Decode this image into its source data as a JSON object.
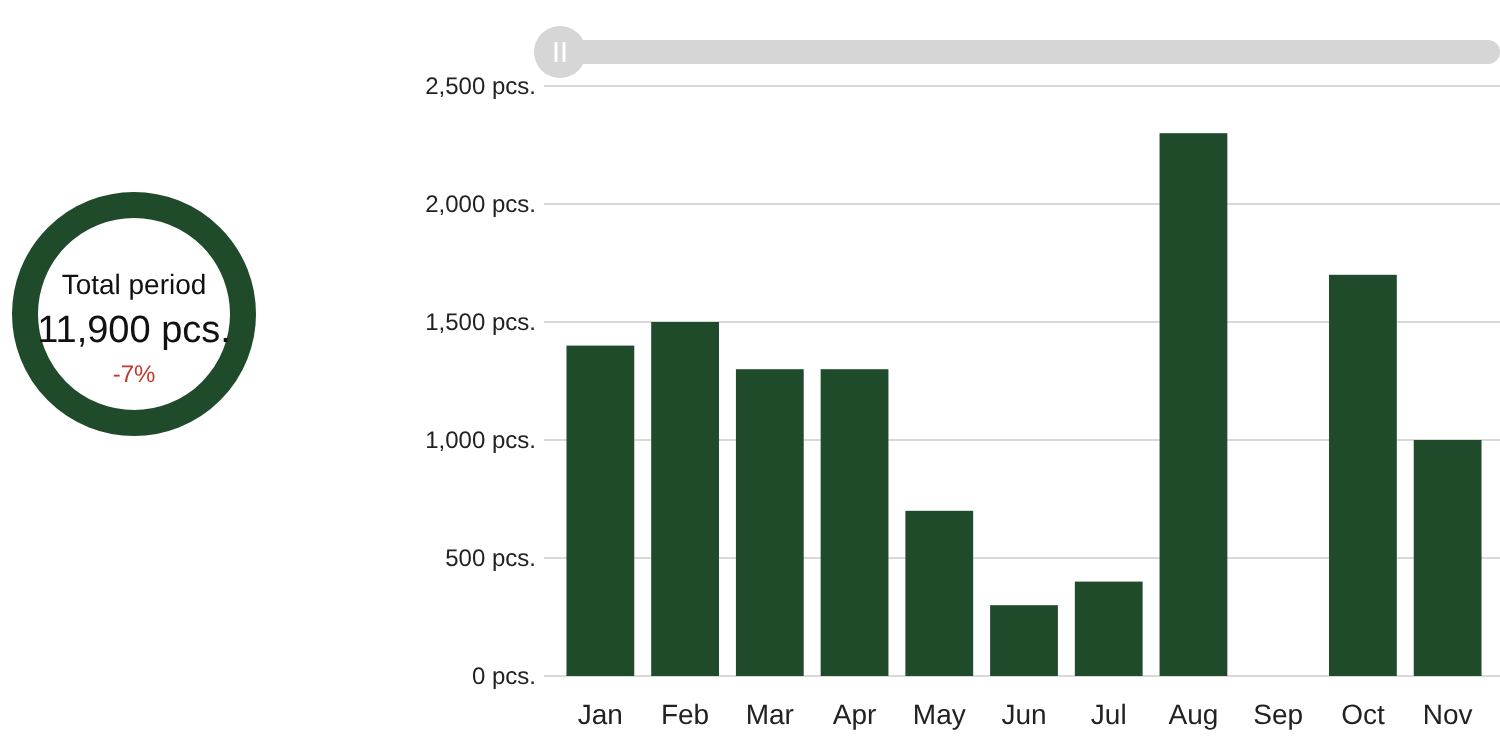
{
  "chart_data": [
    {
      "type": "other",
      "title": "Total period",
      "annotations": [
        "11,900 pcs.",
        "-7%"
      ]
    },
    {
      "type": "bar",
      "categories": [
        "Jan",
        "Feb",
        "Mar",
        "Apr",
        "May",
        "Jun",
        "Jul",
        "Aug",
        "Sep",
        "Oct",
        "Nov"
      ],
      "values": [
        1400,
        1500,
        1300,
        1300,
        700,
        300,
        400,
        2300,
        0,
        1700,
        1000
      ],
      "color": "#1f4b2a",
      "ylim": [
        0,
        2500
      ],
      "yticks": [
        {
          "value": 0,
          "label": "0 pcs."
        },
        {
          "value": 500,
          "label": "500 pcs."
        },
        {
          "value": 1000,
          "label": "1,000 pcs."
        },
        {
          "value": 1500,
          "label": "1,500 pcs."
        },
        {
          "value": 2000,
          "label": "2,000 pcs."
        },
        {
          "value": 2500,
          "label": "2,500 pcs."
        }
      ],
      "grid": true
    }
  ]
}
